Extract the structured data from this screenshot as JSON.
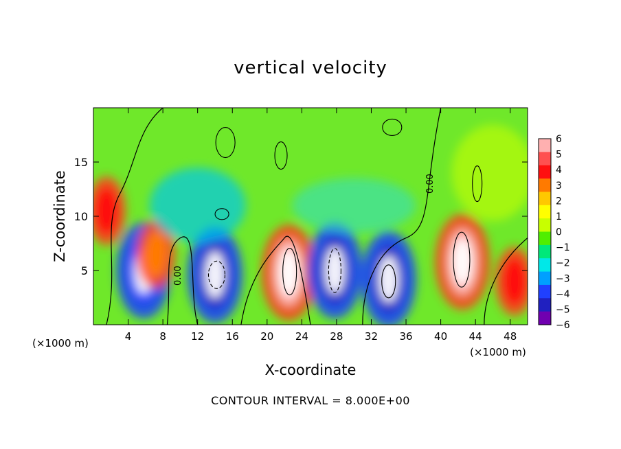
{
  "chart_data": {
    "type": "heatmap",
    "title": "vertical velocity",
    "xlabel": "X-coordinate",
    "ylabel": "Z-coordinate",
    "x_unit_left": "(×1000 m)",
    "x_unit_right": "(×1000 m)",
    "xlim": [
      0,
      50
    ],
    "ylim": [
      0,
      20
    ],
    "x_ticks": [
      4,
      8,
      12,
      16,
      20,
      24,
      28,
      32,
      36,
      40,
      44,
      48
    ],
    "y_ticks": [
      5,
      10,
      15
    ],
    "colorbar": {
      "ticks": [
        6,
        5,
        4,
        3,
        2,
        1,
        0,
        -1,
        -2,
        -3,
        -4,
        -5,
        -6
      ],
      "labels": [
        "6",
        "5",
        "4",
        "3",
        "2",
        "1",
        "0",
        "−1",
        "−2",
        "−3",
        "−4",
        "−5",
        "−6"
      ],
      "colors": [
        "#ffb0b0",
        "#ff5050",
        "#ff1010",
        "#ff7a00",
        "#ffc800",
        "#ffff00",
        "#c8ff00",
        "#50ee00",
        "#00e87a",
        "#00e8e8",
        "#00a0ff",
        "#2040ff",
        "#2020c0",
        "#7000b0"
      ]
    },
    "contour_label": "0.00",
    "contour_interval_text": "CONTOUR INTERVAL = 8.000E+00",
    "features": [
      {
        "x": 1.5,
        "z": 10.5,
        "w": 4
      },
      {
        "x": 5.8,
        "z": 5.0,
        "w": -5
      },
      {
        "x": 7.2,
        "z": 6.5,
        "w": 3
      },
      {
        "x": 14.0,
        "z": 4.6,
        "w": -6
      },
      {
        "x": 22.5,
        "z": 4.8,
        "w": 6
      },
      {
        "x": 27.8,
        "z": 5.0,
        "w": -6
      },
      {
        "x": 34.0,
        "z": 4.2,
        "w": -6
      },
      {
        "x": 42.5,
        "z": 5.8,
        "w": 6
      },
      {
        "x": 48.5,
        "z": 4.0,
        "w": 4
      }
    ]
  }
}
